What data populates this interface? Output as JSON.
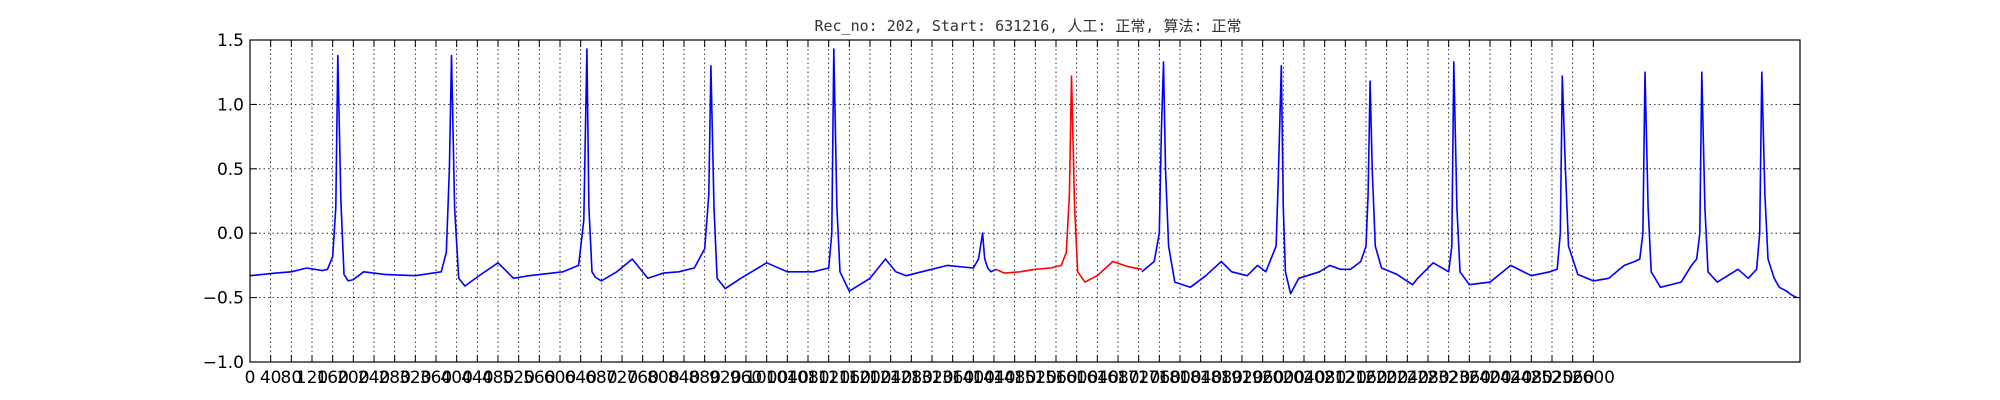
{
  "chart_data": {
    "type": "line",
    "title": "Rec_no: 202, Start: 631216, 人工: 正常, 算法: 正常",
    "xlabel": "",
    "ylabel": "",
    "xlim": [
      0,
      1500
    ],
    "ylim": [
      -1.0,
      1.5
    ],
    "grid": true,
    "legend": "none",
    "yticks": [
      -1.0,
      -0.5,
      0.0,
      0.5,
      1.0,
      1.5
    ],
    "ytick_labels": [
      "−1.0",
      "−0.5",
      "0.0",
      "0.5",
      "1.0",
      "1.5"
    ],
    "xticks": [
      0,
      20,
      40,
      60,
      80,
      100,
      120,
      140,
      160,
      180,
      200,
      220,
      240,
      260,
      280,
      300,
      320,
      340,
      360,
      380,
      400,
      420,
      440,
      460,
      480,
      500,
      520,
      540,
      560,
      580,
      600,
      620,
      640,
      660,
      680,
      700,
      720,
      740,
      760,
      780,
      800,
      820,
      840,
      860,
      880,
      900,
      920,
      940,
      960,
      980,
      1000,
      1020,
      1040,
      1060,
      1080,
      1100,
      1120,
      1140,
      1160,
      1180,
      1200,
      1220,
      1240,
      1260,
      1280,
      1300
    ],
    "xtick_labels": [
      "0",
      "40",
      "80",
      "120",
      "160",
      "200",
      "240",
      "280",
      "320",
      "360",
      "400",
      "440",
      "480",
      "520",
      "560",
      "600",
      "640",
      "680",
      "720",
      "760",
      "800",
      "840",
      "880",
      "920",
      "960",
      "1000",
      "1040",
      "1080",
      "1120",
      "1160",
      "1200",
      "1240",
      "1280",
      "1320",
      "1360",
      "1400",
      "1440",
      "1480",
      "1520",
      "1560",
      "1600",
      "1640",
      "1680",
      "1720",
      "1760",
      "1800",
      "1840",
      "1880",
      "1920",
      "1960",
      "2000",
      "2040",
      "2080",
      "2120",
      "2160",
      "2200",
      "2240",
      "2280",
      "2320",
      "2360",
      "2400",
      "2440",
      "2480",
      "2520",
      "2560",
      "2600"
    ],
    "series": [
      {
        "color": "#0000ff",
        "x": [
          0,
          25,
          40,
          55,
          70,
          75,
          80,
          83,
          85,
          88,
          91,
          95,
          100,
          110,
          130,
          160,
          185,
          190,
          193,
          195,
          198,
          202,
          208,
          220,
          240,
          255,
          270,
          303,
          318,
          323,
          326,
          328,
          331,
          334,
          340,
          355,
          370,
          385,
          400,
          415,
          430,
          440,
          444,
          446,
          449,
          452,
          460,
          475,
          500,
          520,
          545,
          560,
          563,
          565,
          568,
          571,
          580,
          600,
          615,
          625,
          635,
          650,
          675,
          700,
          705,
          709,
          711,
          714,
          717,
          722
        ],
        "y": [
          -0.33,
          -0.31,
          -0.3,
          -0.27,
          -0.29,
          -0.28,
          -0.18,
          0.2,
          1.38,
          0.25,
          -0.32,
          -0.37,
          -0.36,
          -0.3,
          -0.32,
          -0.33,
          -0.3,
          -0.15,
          0.5,
          1.38,
          0.2,
          -0.35,
          -0.41,
          -0.34,
          -0.23,
          -0.35,
          -0.33,
          -0.3,
          -0.25,
          0.1,
          1.43,
          0.2,
          -0.3,
          -0.34,
          -0.37,
          -0.3,
          -0.2,
          -0.35,
          -0.31,
          -0.3,
          -0.27,
          -0.12,
          0.3,
          1.3,
          0.2,
          -0.35,
          -0.43,
          -0.35,
          -0.23,
          -0.3,
          -0.3,
          -0.27,
          0.0,
          1.43,
          0.2,
          -0.3,
          -0.45,
          -0.35,
          -0.2,
          -0.3,
          -0.33,
          -0.3,
          -0.25,
          -0.27,
          -0.2,
          0.0,
          -0.2,
          -0.27,
          -0.3,
          -0.28
        ]
      },
      {
        "color": "#ff0000",
        "x": [
          722,
          730,
          745,
          760,
          775,
          785,
          790,
          793,
          795,
          798,
          801,
          808,
          820,
          835,
          850,
          863
        ],
        "y": [
          -0.28,
          -0.31,
          -0.3,
          -0.28,
          -0.27,
          -0.25,
          -0.15,
          0.3,
          1.22,
          0.2,
          -0.3,
          -0.38,
          -0.33,
          -0.22,
          -0.26,
          -0.28
        ]
      },
      {
        "color": "#0000ff",
        "x": [
          863,
          875,
          880,
          882,
          884,
          886,
          889,
          895,
          910,
          925,
          940,
          950,
          965,
          975,
          983,
          993,
          995,
          998,
          1000,
          1002,
          1007,
          1015,
          1035,
          1045,
          1055,
          1065,
          1075,
          1080,
          1082,
          1084,
          1086,
          1089,
          1095,
          1110,
          1125,
          1130,
          1145,
          1160,
          1163,
          1165,
          1168,
          1171,
          1180,
          1200,
          1220,
          1240,
          1258,
          1265,
          1268,
          1270,
          1273,
          1276,
          1285,
          1300,
          1315,
          1330,
          1340,
          1345,
          1348,
          1350,
          1353,
          1356,
          1365,
          1385,
          1395,
          1400,
          1403,
          1405,
          1408,
          1411,
          1420,
          1430,
          1440,
          1450,
          1458,
          1461,
          1463,
          1466,
          1469,
          1475,
          1480,
          1487,
          1492,
          1497
        ],
        "y": [
          -0.3,
          -0.22,
          0.0,
          0.8,
          1.33,
          0.5,
          -0.1,
          -0.38,
          -0.42,
          -0.33,
          -0.22,
          -0.3,
          -0.33,
          -0.25,
          -0.3,
          -0.1,
          0.4,
          1.3,
          0.2,
          -0.3,
          -0.47,
          -0.35,
          -0.3,
          -0.25,
          -0.28,
          -0.28,
          -0.22,
          -0.1,
          0.3,
          1.18,
          0.5,
          -0.1,
          -0.27,
          -0.32,
          -0.4,
          -0.35,
          -0.23,
          -0.3,
          -0.1,
          1.33,
          0.2,
          -0.3,
          -0.4,
          -0.38,
          -0.25,
          -0.33,
          -0.3,
          -0.28,
          0.0,
          1.22,
          0.5,
          -0.1,
          -0.32,
          -0.37,
          -0.35,
          -0.25,
          -0.22,
          -0.2,
          0.0,
          1.25,
          0.2,
          -0.3,
          -0.42,
          -0.38,
          -0.25,
          -0.2,
          0.0,
          1.25,
          0.2,
          -0.3,
          -0.38,
          -0.33,
          -0.28,
          -0.35,
          -0.28,
          0.0,
          1.25,
          0.3,
          -0.2,
          -0.35,
          -0.42,
          -0.45,
          -0.48,
          -0.5
        ]
      }
    ]
  }
}
